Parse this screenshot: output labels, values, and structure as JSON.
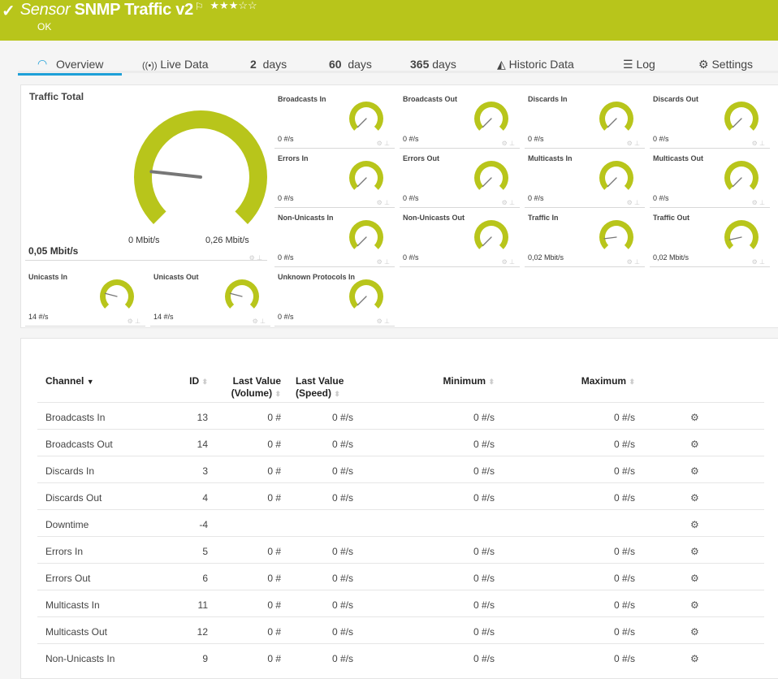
{
  "header": {
    "prefix": "Sensor",
    "title": "SNMP Traffic v2",
    "status": "OK",
    "stars": "★★★☆☆",
    "rating": 3,
    "color": "#b8c51b"
  },
  "tabs": [
    {
      "label": "Overview",
      "icon": "gauge-icon"
    },
    {
      "label": "Live Data",
      "icon": "broadcast-icon"
    },
    {
      "num": "2",
      "label": "days"
    },
    {
      "num": "60",
      "label": "days"
    },
    {
      "num": "365",
      "label": "days"
    },
    {
      "label": "Historic Data",
      "icon": "area-chart-icon"
    },
    {
      "label": "Log",
      "icon": "list-icon"
    },
    {
      "label": "Settings",
      "icon": "gear-icon"
    }
  ],
  "gauge_color": "#b8c51b",
  "main_gauge": {
    "name": "Traffic Total",
    "value": "0,05 Mbit/s",
    "min": "0 Mbit/s",
    "max": "0,26 Mbit/s",
    "fraction": 0.19
  },
  "gauges": [
    {
      "name": "Broadcasts In",
      "value": "0 #/s",
      "fraction": 0
    },
    {
      "name": "Broadcasts Out",
      "value": "0 #/s",
      "fraction": 0
    },
    {
      "name": "Discards In",
      "value": "0 #/s",
      "fraction": 0
    },
    {
      "name": "Discards Out",
      "value": "0 #/s",
      "fraction": 0
    },
    {
      "name": "Errors In",
      "value": "0 #/s",
      "fraction": 0
    },
    {
      "name": "Errors Out",
      "value": "0 #/s",
      "fraction": 0
    },
    {
      "name": "Multicasts In",
      "value": "0 #/s",
      "fraction": 0
    },
    {
      "name": "Multicasts Out",
      "value": "0 #/s",
      "fraction": 0
    },
    {
      "name": "Non-Unicasts In",
      "value": "0 #/s",
      "fraction": 0
    },
    {
      "name": "Non-Unicasts Out",
      "value": "0 #/s",
      "fraction": 0
    },
    {
      "name": "Traffic In",
      "value": "0,02 Mbit/s",
      "fraction": 0.14
    },
    {
      "name": "Traffic Out",
      "value": "0,02 Mbit/s",
      "fraction": 0.12
    },
    {
      "name": "Unicasts In",
      "value": "14 #/s",
      "fraction": 0.22
    },
    {
      "name": "Unicasts Out",
      "value": "14 #/s",
      "fraction": 0.22
    },
    {
      "name": "Unknown Protocols In",
      "value": "0 #/s",
      "fraction": 0
    }
  ],
  "table": {
    "headers": {
      "channel": "Channel",
      "id": "ID",
      "lv_vol1": "Last Value",
      "lv_vol2": "(Volume)",
      "lv_spd1": "Last Value",
      "lv_spd2": "(Speed)",
      "min": "Minimum",
      "max": "Maximum"
    },
    "rows": [
      {
        "channel": "Broadcasts In",
        "id": "13",
        "vol": "0 #",
        "speed": "0 #/s",
        "min": "0 #/s",
        "max": "0 #/s"
      },
      {
        "channel": "Broadcasts Out",
        "id": "14",
        "vol": "0 #",
        "speed": "0 #/s",
        "min": "0 #/s",
        "max": "0 #/s"
      },
      {
        "channel": "Discards In",
        "id": "3",
        "vol": "0 #",
        "speed": "0 #/s",
        "min": "0 #/s",
        "max": "0 #/s"
      },
      {
        "channel": "Discards Out",
        "id": "4",
        "vol": "0 #",
        "speed": "0 #/s",
        "min": "0 #/s",
        "max": "0 #/s"
      },
      {
        "channel": "Downtime",
        "id": "-4",
        "vol": "",
        "speed": "",
        "min": "",
        "max": ""
      },
      {
        "channel": "Errors In",
        "id": "5",
        "vol": "0 #",
        "speed": "0 #/s",
        "min": "0 #/s",
        "max": "0 #/s"
      },
      {
        "channel": "Errors Out",
        "id": "6",
        "vol": "0 #",
        "speed": "0 #/s",
        "min": "0 #/s",
        "max": "0 #/s"
      },
      {
        "channel": "Multicasts In",
        "id": "11",
        "vol": "0 #",
        "speed": "0 #/s",
        "min": "0 #/s",
        "max": "0 #/s"
      },
      {
        "channel": "Multicasts Out",
        "id": "12",
        "vol": "0 #",
        "speed": "0 #/s",
        "min": "0 #/s",
        "max": "0 #/s"
      },
      {
        "channel": "Non-Unicasts In",
        "id": "9",
        "vol": "0 #",
        "speed": "0 #/s",
        "min": "0 #/s",
        "max": "0 #/s"
      }
    ]
  }
}
